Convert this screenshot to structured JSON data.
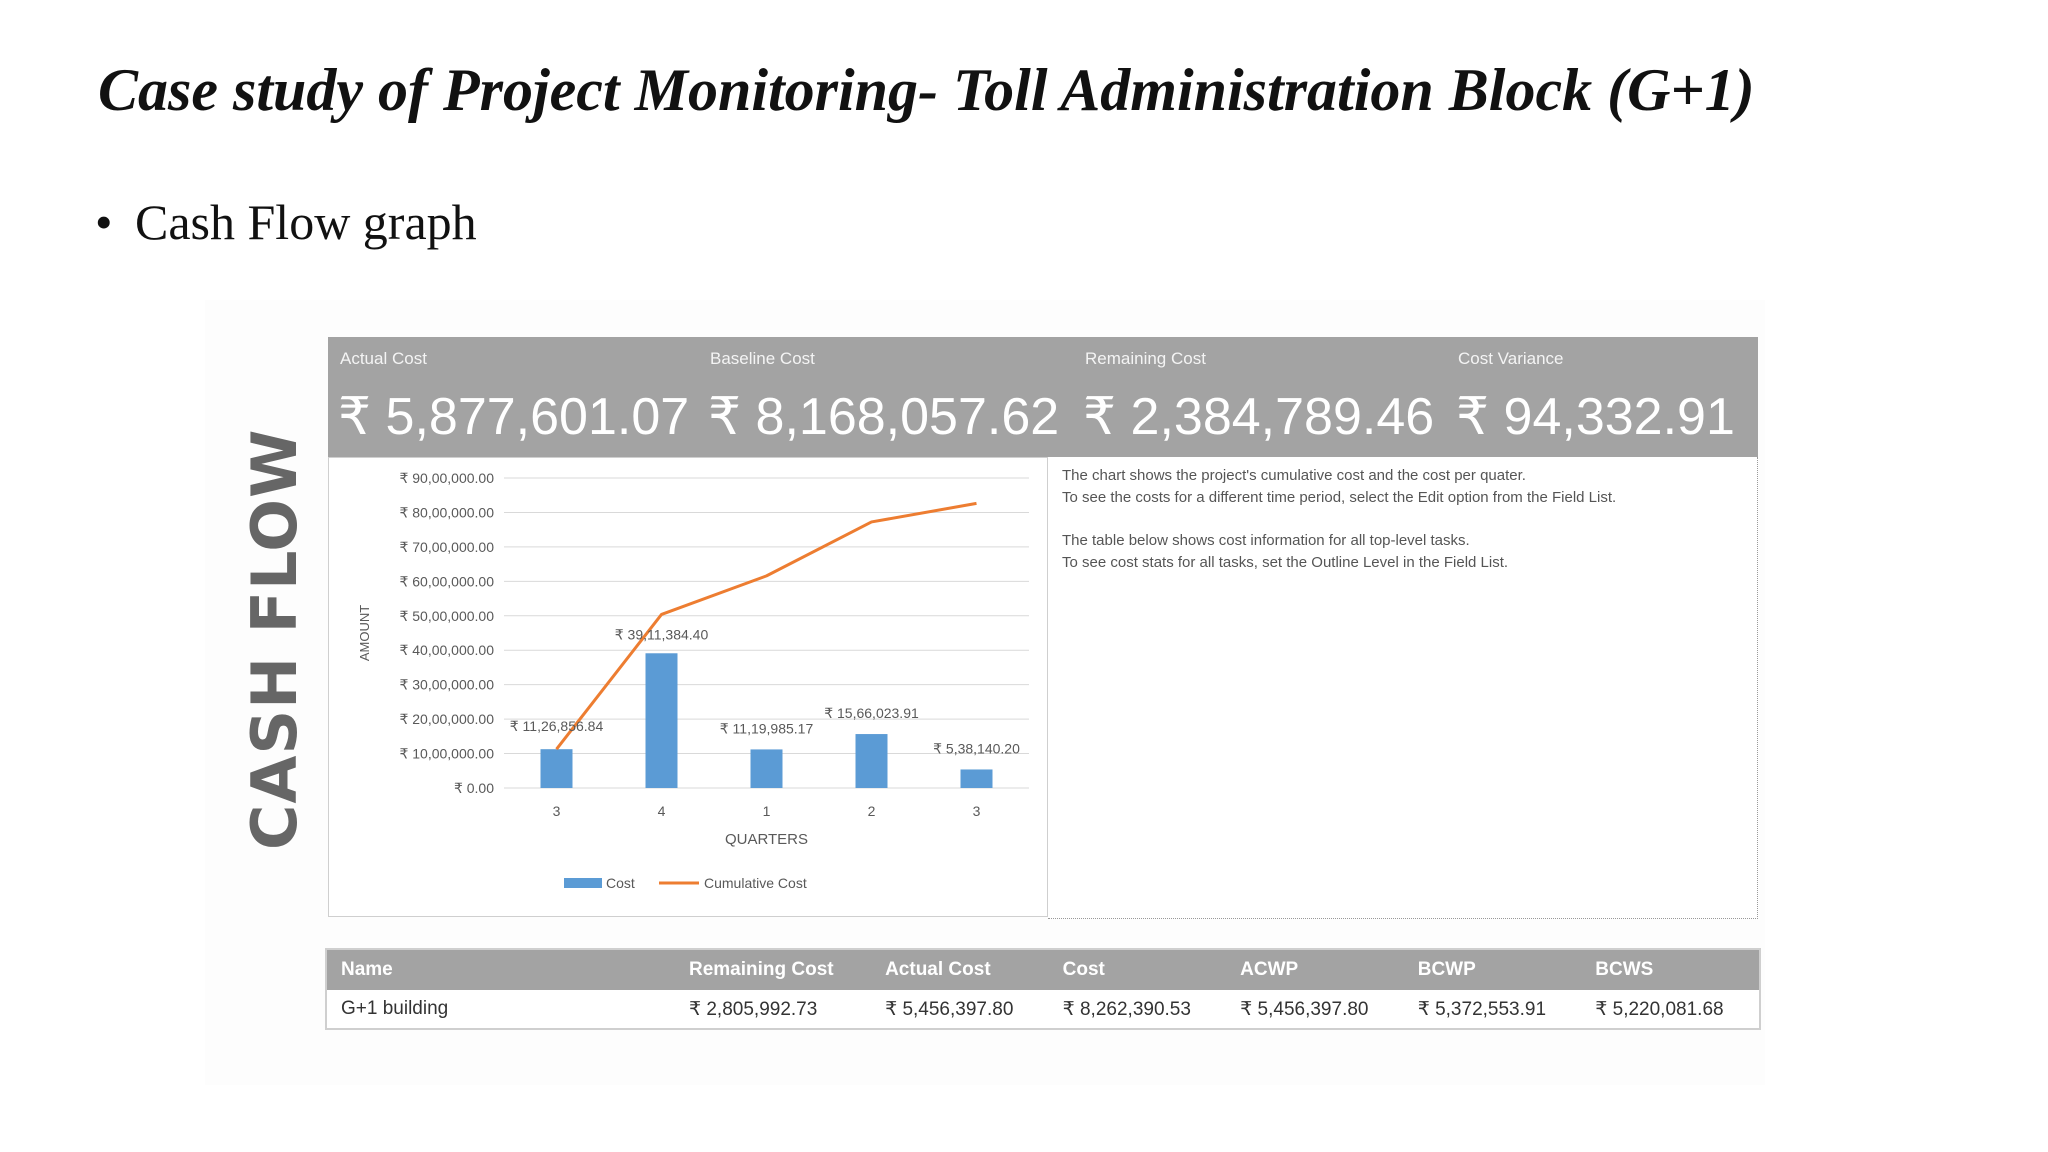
{
  "slide": {
    "title": "Case study of Project Monitoring- Toll Administration Block (G+1)",
    "bullet": "Cash Flow graph"
  },
  "report": {
    "side_title": "CASH FLOW",
    "kpis": [
      {
        "label": "Actual Cost",
        "value": "₹ 5,877,601.07"
      },
      {
        "label": "Baseline Cost",
        "value": "₹ 8,168,057.62"
      },
      {
        "label": "Remaining Cost",
        "value": "₹ 2,384,789.46"
      },
      {
        "label": "Cost Variance",
        "value": "₹ 94,332.91"
      }
    ],
    "info_lines": [
      "The chart shows the project's cumulative cost and the cost per quater.",
      "To see the costs for a different time period, select the Edit option from the Field List.",
      "The table below shows cost information for all top-level tasks.",
      "To see cost stats for all tasks, set the Outline Level in the Field List."
    ],
    "table": {
      "headers": [
        "Name",
        "Remaining Cost",
        "Actual Cost",
        "Cost",
        "ACWP",
        "BCWP",
        "BCWS"
      ],
      "rows": [
        [
          "G+1 building",
          "₹ 2,805,992.73",
          "₹ 5,456,397.80",
          "₹ 8,262,390.53",
          "₹ 5,456,397.80",
          "₹ 5,372,553.91",
          "₹ 5,220,081.68"
        ]
      ]
    }
  },
  "chart_data": {
    "type": "bar",
    "categories": [
      "3",
      "4",
      "1",
      "2",
      "3"
    ],
    "series": [
      {
        "name": "Cost",
        "kind": "bar",
        "color": "#5b9bd5",
        "values": [
          1126856.84,
          3911384.4,
          1119985.17,
          1566023.91,
          538140.2
        ],
        "data_labels": [
          "₹ 11,26,856.84",
          "₹ 39,11,384.40",
          "₹ 11,19,985.17",
          "₹ 15,66,023.91",
          "₹ 5,38,140.20"
        ]
      },
      {
        "name": "Cumulative Cost",
        "kind": "line",
        "color": "#ed7d31",
        "values": [
          1126856.84,
          5038241.24,
          6158226.41,
          7724250.32,
          8262390.52
        ]
      }
    ],
    "xlabel": "QUARTERS",
    "ylabel": "AMOUNT",
    "ylim": [
      0,
      9000000
    ],
    "y_ticks": [
      0,
      1000000,
      2000000,
      3000000,
      4000000,
      5000000,
      6000000,
      7000000,
      8000000,
      9000000
    ],
    "y_tick_labels": [
      "₹ 0.00",
      "₹ 10,00,000.00",
      "₹ 20,00,000.00",
      "₹ 30,00,000.00",
      "₹ 40,00,000.00",
      "₹ 50,00,000.00",
      "₹ 60,00,000.00",
      "₹ 70,00,000.00",
      "₹ 80,00,000.00",
      "₹ 90,00,000.00"
    ],
    "grid": true,
    "legend": "bottom"
  }
}
